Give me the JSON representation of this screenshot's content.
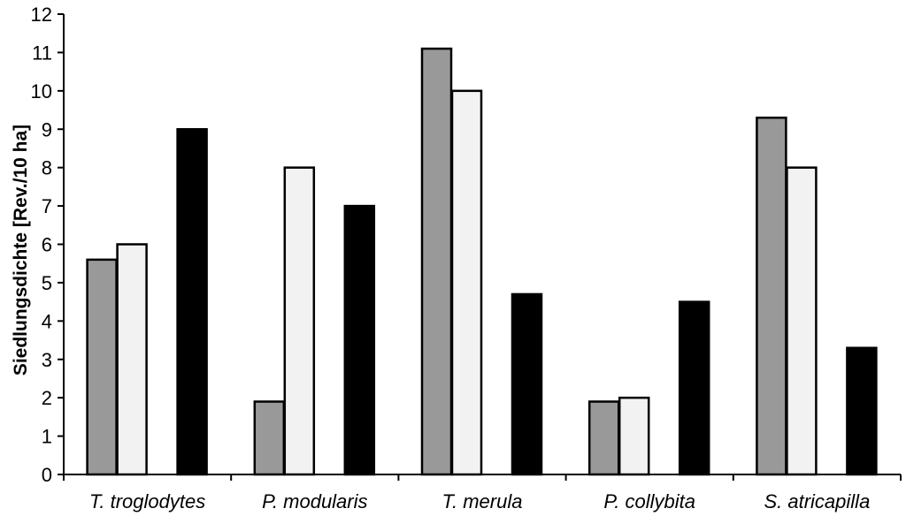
{
  "chart_data": {
    "type": "bar",
    "title": "",
    "xlabel": "",
    "ylabel": "Siedlungsdichte [Rev./10 ha]",
    "ylim": [
      0,
      12
    ],
    "ytick_step": 1,
    "grid": false,
    "legend": "none",
    "categories": [
      "T. troglodytes",
      "P. modularis",
      "T. merula",
      "P. collybita",
      "S. atricapilla"
    ],
    "series": [
      {
        "color": "#999999",
        "values": [
          5.6,
          1.9,
          11.1,
          1.9,
          9.3
        ]
      },
      {
        "color": "#f2f2f2",
        "values": [
          6.0,
          8.0,
          10.0,
          2.0,
          8.0
        ]
      },
      {
        "color": "#000000",
        "values": [
          null,
          null,
          null,
          null,
          null
        ]
      },
      {
        "color": "#000000",
        "values": [
          9.0,
          7.0,
          4.7,
          4.5,
          3.3
        ]
      }
    ]
  }
}
